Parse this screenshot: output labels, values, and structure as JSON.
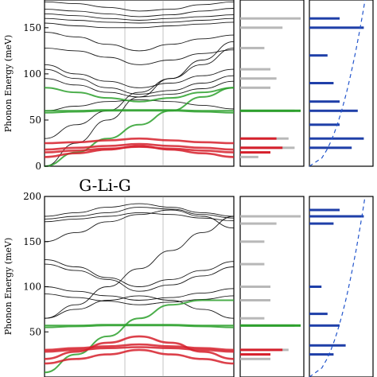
{
  "chart_data": [
    {
      "type": "line",
      "panel": "top",
      "title": "",
      "ylabel": "Phonon Energy (meV)",
      "ylim": [
        0,
        180
      ],
      "yticks": [
        0,
        50,
        100,
        150
      ],
      "series_colors": {
        "black": "#000000",
        "red": "#d6202c",
        "green": "#2ca02c",
        "dos_gray": "#b8b8b8",
        "dos_blue": "#1f3fa8",
        "dashed": "#2255cc"
      },
      "bands": {
        "black": [
          [
            178,
            176,
            172,
            168,
            170,
            175,
            178
          ],
          [
            170,
            168,
            165,
            162,
            164,
            168,
            171
          ],
          [
            165,
            163,
            160,
            158,
            160,
            162,
            164
          ],
          [
            160,
            158,
            156,
            155,
            156,
            158,
            160
          ],
          [
            155,
            152,
            150,
            150,
            152,
            154,
            156
          ],
          [
            145,
            140,
            132,
            125,
            132,
            138,
            142
          ],
          [
            128,
            125,
            118,
            110,
            115,
            122,
            126
          ],
          [
            110,
            100,
            92,
            85,
            90,
            98,
            105
          ],
          [
            105,
            95,
            85,
            78,
            82,
            90,
            98
          ],
          [
            95,
            88,
            80,
            75,
            78,
            84,
            92
          ],
          [
            60,
            65,
            70,
            72,
            70,
            66,
            62
          ],
          [
            30,
            45,
            60,
            80,
            95,
            110,
            128
          ],
          [
            0,
            25,
            50,
            75,
            95,
            115,
            135
          ]
        ],
        "red": [
          [
            18,
            20,
            22,
            24,
            22,
            20,
            18
          ],
          [
            15,
            17,
            19,
            21,
            19,
            17,
            15
          ],
          [
            25,
            26,
            28,
            30,
            28,
            26,
            25
          ],
          [
            10,
            14,
            18,
            22,
            18,
            14,
            10
          ]
        ],
        "green": [
          [
            60,
            60,
            61,
            61,
            61,
            60,
            60
          ],
          [
            58,
            59,
            60,
            60,
            60,
            59,
            58
          ],
          [
            0,
            15,
            30,
            45,
            60,
            75,
            85
          ],
          [
            85,
            80,
            74,
            70,
            74,
            80,
            85
          ]
        ]
      },
      "gray_dos_peaks": [
        [
          160,
          1.0
        ],
        [
          150,
          0.7
        ],
        [
          128,
          0.4
        ],
        [
          105,
          0.5
        ],
        [
          95,
          0.6
        ],
        [
          85,
          0.5
        ],
        [
          60,
          0.9
        ],
        [
          30,
          0.8
        ],
        [
          20,
          0.9
        ],
        [
          10,
          0.3
        ]
      ],
      "green_dos_peaks": [
        [
          60,
          1.0
        ]
      ],
      "red_dos_peaks": [
        [
          30,
          0.6
        ],
        [
          20,
          0.7
        ],
        [
          15,
          0.5
        ]
      ],
      "blue_dos_peaks": [
        [
          160,
          0.5
        ],
        [
          150,
          0.9
        ],
        [
          120,
          0.3
        ],
        [
          90,
          0.4
        ],
        [
          70,
          0.5
        ],
        [
          60,
          0.8
        ],
        [
          45,
          0.5
        ],
        [
          30,
          0.9
        ],
        [
          20,
          0.7
        ]
      ]
    },
    {
      "type": "line",
      "panel": "bottom",
      "title": "G-Li-G",
      "ylabel": "Phonon Energy (meV)",
      "ylim": [
        0,
        200
      ],
      "yticks": [
        50,
        100,
        150,
        200
      ],
      "bands": {
        "black": [
          [
            178,
            182,
            188,
            192,
            188,
            182,
            178
          ],
          [
            175,
            178,
            182,
            188,
            186,
            180,
            176
          ],
          [
            172,
            175,
            178,
            182,
            180,
            176,
            173
          ],
          [
            150,
            160,
            172,
            180,
            185,
            178,
            165
          ],
          [
            130,
            122,
            110,
            100,
            108,
            118,
            128
          ],
          [
            125,
            118,
            108,
            95,
            102,
            112,
            122
          ],
          [
            100,
            95,
            90,
            85,
            88,
            93,
            98
          ],
          [
            92,
            88,
            84,
            80,
            83,
            86,
            90
          ],
          [
            65,
            80,
            100,
            120,
            140,
            160,
            178
          ],
          [
            65,
            75,
            85,
            90,
            85,
            75,
            65
          ]
        ],
        "red": [
          [
            30,
            32,
            34,
            36,
            34,
            32,
            30
          ],
          [
            28,
            30,
            32,
            33,
            32,
            30,
            28
          ],
          [
            20,
            28,
            38,
            45,
            38,
            28,
            20
          ],
          [
            15,
            20,
            25,
            30,
            25,
            20,
            15
          ]
        ],
        "green": [
          [
            57,
            57,
            58,
            58,
            58,
            57,
            57
          ],
          [
            55,
            56,
            57,
            57,
            57,
            56,
            55
          ],
          [
            5,
            25,
            45,
            65,
            80,
            85,
            85
          ]
        ]
      },
      "gray_dos_peaks": [
        [
          178,
          1.0
        ],
        [
          170,
          0.6
        ],
        [
          150,
          0.4
        ],
        [
          125,
          0.4
        ],
        [
          100,
          0.5
        ],
        [
          85,
          0.5
        ],
        [
          65,
          0.4
        ],
        [
          57,
          0.9
        ],
        [
          30,
          0.8
        ],
        [
          20,
          0.5
        ]
      ],
      "green_dos_peaks": [
        [
          57,
          1.0
        ]
      ],
      "red_dos_peaks": [
        [
          30,
          0.7
        ],
        [
          25,
          0.5
        ]
      ],
      "blue_dos_peaks": [
        [
          185,
          0.5
        ],
        [
          178,
          0.9
        ],
        [
          170,
          0.4
        ],
        [
          100,
          0.2
        ],
        [
          70,
          0.3
        ],
        [
          57,
          0.5
        ],
        [
          35,
          0.6
        ],
        [
          25,
          0.4
        ]
      ]
    }
  ]
}
